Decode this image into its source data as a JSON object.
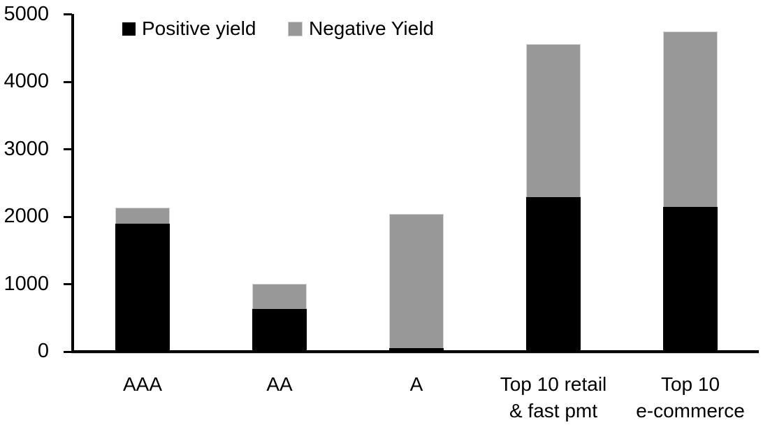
{
  "legend": {
    "items": [
      {
        "label": "Positive yield",
        "color": "#000000",
        "swatch_border": "none"
      },
      {
        "label": "Negative Yield",
        "color": "#989898",
        "swatch_border": "#d0d0d0"
      }
    ]
  },
  "chart_data": {
    "type": "bar",
    "stacked": true,
    "title": "",
    "xlabel": "",
    "ylabel": "",
    "categories": [
      "AAA",
      "AA",
      "A",
      "Top 10 retail\n& fast pmt",
      "Top 10\ne-commerce"
    ],
    "series": [
      {
        "name": "Positive yield",
        "color": "#000000",
        "values": [
          1900,
          630,
          50,
          2290,
          2150
        ]
      },
      {
        "name": "Negative Yield",
        "color": "#989898",
        "values": [
          230,
          380,
          1990,
          2270,
          2600
        ]
      }
    ],
    "totals": [
      2130,
      1010,
      2040,
      4560,
      4750
    ],
    "ylim": [
      0,
      5000
    ],
    "yticks": [
      0,
      1000,
      2000,
      3000,
      4000,
      5000
    ],
    "grid": false,
    "legend_position": "top-left-inside"
  }
}
